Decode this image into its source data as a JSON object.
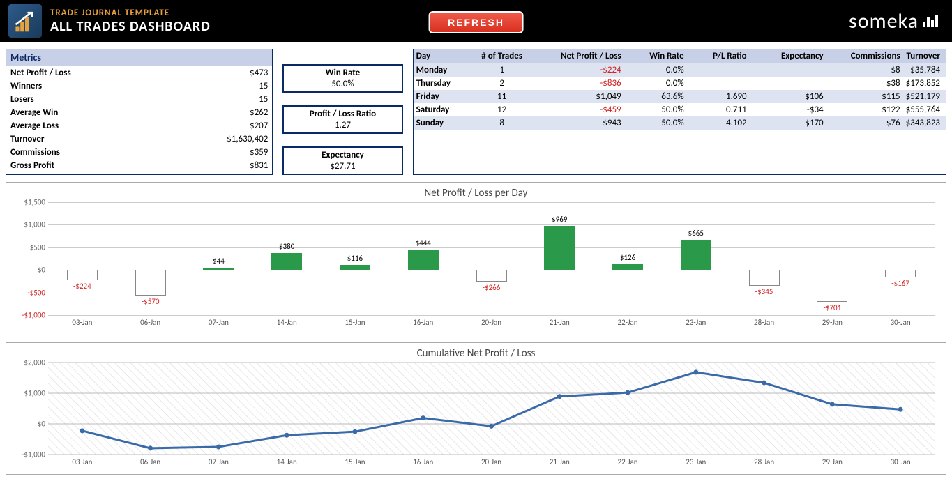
{
  "header": {
    "title_small": "TRADE JOURNAL TEMPLATE",
    "title_big": "ALL TRADES DASHBOARD",
    "refresh": "REFRESH",
    "brand": "someka"
  },
  "metrics": {
    "heading": "Metrics",
    "rows": [
      {
        "label": "Net Profit / Loss",
        "value": "$473"
      },
      {
        "label": "Winners",
        "value": "15"
      },
      {
        "label": "Losers",
        "value": "15"
      },
      {
        "label": "Average Win",
        "value": "$262"
      },
      {
        "label": "Average Loss",
        "value": "$207"
      },
      {
        "label": "Turnover",
        "value": "$1,630,402"
      },
      {
        "label": "Commissions",
        "value": "$359"
      },
      {
        "label": "Gross Profit",
        "value": "$831"
      }
    ]
  },
  "kpis": [
    {
      "label": "Win Rate",
      "value": "50.0%"
    },
    {
      "label": "Profit / Loss Ratio",
      "value": "1.27"
    },
    {
      "label": "Expectancy",
      "value": "$27.71"
    }
  ],
  "day_table": {
    "columns": [
      "Day",
      "# of Trades",
      "Net Profit / Loss",
      "Win Rate",
      "P/L Ratio",
      "Expectancy",
      "Commissions",
      "Turnover"
    ],
    "rows": [
      {
        "day": "Monday",
        "trades": "1",
        "npl": "-$224",
        "npl_neg": true,
        "winrate": "0.0%",
        "pl": "",
        "exp": "",
        "comm": "$8",
        "turn": "$35,784"
      },
      {
        "day": "Thursday",
        "trades": "2",
        "npl": "-$836",
        "npl_neg": true,
        "winrate": "0.0%",
        "pl": "",
        "exp": "",
        "comm": "$38",
        "turn": "$173,852"
      },
      {
        "day": "Friday",
        "trades": "11",
        "npl": "$1,049",
        "npl_neg": false,
        "winrate": "63.6%",
        "pl": "1.690",
        "exp": "$106",
        "comm": "$115",
        "turn": "$521,179"
      },
      {
        "day": "Saturday",
        "trades": "12",
        "npl": "-$459",
        "npl_neg": true,
        "winrate": "50.0%",
        "pl": "0.711",
        "exp": "-$34",
        "comm": "$122",
        "turn": "$555,764"
      },
      {
        "day": "Sunday",
        "trades": "8",
        "npl": "$943",
        "npl_neg": false,
        "winrate": "50.0%",
        "pl": "4.102",
        "exp": "$170",
        "comm": "$76",
        "turn": "$343,823"
      }
    ]
  },
  "bar_chart": {
    "title": "Net Profit / Loss per Day",
    "ymin": -1000,
    "ymax": 1500,
    "ystep": 500,
    "yticks": [
      {
        "v": 1500,
        "label": "$1,500",
        "neg": false
      },
      {
        "v": 1000,
        "label": "$1,000",
        "neg": false
      },
      {
        "v": 500,
        "label": "$500",
        "neg": false
      },
      {
        "v": 0,
        "label": "$0",
        "neg": false
      },
      {
        "v": -500,
        "label": "-$500",
        "neg": true
      },
      {
        "v": -1000,
        "label": "-$1,000",
        "neg": true
      }
    ],
    "categories": [
      "03-Jan",
      "06-Jan",
      "07-Jan",
      "14-Jan",
      "15-Jan",
      "16-Jan",
      "20-Jan",
      "21-Jan",
      "22-Jan",
      "23-Jan",
      "28-Jan",
      "29-Jan",
      "30-Jan"
    ],
    "values": [
      -224,
      -570,
      44,
      380,
      116,
      444,
      -266,
      969,
      126,
      665,
      -345,
      -701,
      -167
    ],
    "labels": [
      "-$224",
      "-$570",
      "$44",
      "$380",
      "$116",
      "$444",
      "-$266",
      "$969",
      "$126",
      "$665",
      "-$345",
      "-$701",
      "-$167"
    ],
    "pos_color": "#2a9a4a",
    "neg_border": "#888888",
    "grid_color": "#cccccc"
  },
  "line_chart": {
    "title": "Cumulative Net Profit / Loss",
    "ymin": -1000,
    "ymax": 2000,
    "ystep": 1000,
    "yticks": [
      {
        "v": 2000,
        "label": "$2,000"
      },
      {
        "v": 1000,
        "label": "$1,000"
      },
      {
        "v": 0,
        "label": "$0"
      },
      {
        "v": -1000,
        "label": "-$1,000"
      }
    ],
    "categories": [
      "03-Jan",
      "06-Jan",
      "07-Jan",
      "14-Jan",
      "15-Jan",
      "16-Jan",
      "20-Jan",
      "21-Jan",
      "22-Jan",
      "23-Jan",
      "28-Jan",
      "29-Jan",
      "30-Jan"
    ],
    "values": [
      -224,
      -794,
      -750,
      -370,
      -254,
      190,
      -76,
      893,
      1019,
      1684,
      1339,
      638,
      471
    ],
    "line_color": "#3a6aa8",
    "line_width": 3,
    "marker_color": "#3a6aa8"
  }
}
